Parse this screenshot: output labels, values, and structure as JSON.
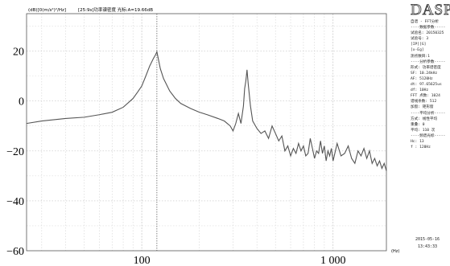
{
  "chart_data": {
    "type": "line",
    "header_unit": "(dB)[0(m/s²)²/Hz]",
    "header_cursor": "[25:9s]功率谱密度 光标:A=19.66dB",
    "x_unit": "(Hz)",
    "x_scale": "log",
    "xlim": [
      25,
      1900
    ],
    "ylim": [
      -60,
      35
    ],
    "y_ticks": [
      20,
      0,
      -20,
      -40,
      -60
    ],
    "y_tick_labels": [
      "20",
      "0",
      "−20",
      "−40",
      "−60"
    ],
    "x_ticks": [
      100,
      1000
    ],
    "x_tick_labels": [
      "100",
      "1 000"
    ],
    "grid": true,
    "cursor_x": 120,
    "series": [
      {
        "color": "#555555",
        "x": [
          25,
          30,
          40,
          50,
          60,
          70,
          80,
          90,
          95,
          100,
          105,
          110,
          115,
          118,
          120,
          122,
          125,
          130,
          140,
          150,
          160,
          180,
          200,
          220,
          250,
          270,
          290,
          300,
          310,
          320,
          330,
          340,
          345,
          350,
          355,
          360,
          370,
          380,
          400,
          420,
          440,
          460,
          480,
          500,
          520,
          540,
          560,
          580,
          600,
          620,
          640,
          660,
          680,
          700,
          720,
          740,
          760,
          780,
          800,
          820,
          840,
          860,
          880,
          900,
          920,
          940,
          960,
          980,
          1000,
          1050,
          1100,
          1150,
          1200,
          1250,
          1300,
          1350,
          1400,
          1450,
          1500,
          1550,
          1600,
          1650,
          1700,
          1750,
          1800,
          1850,
          1900
        ],
        "y": [
          -9,
          -8,
          -7,
          -6.5,
          -5.5,
          -4.5,
          -2.5,
          1,
          3.5,
          6,
          10,
          14,
          17,
          18.5,
          19.7,
          17,
          13,
          9,
          4,
          1,
          -1,
          -3,
          -4.5,
          -5.5,
          -7,
          -8,
          -10,
          -12,
          -9,
          -5,
          -9,
          -2,
          5,
          8,
          12.5,
          7,
          -2,
          -8,
          -11,
          -13,
          -12,
          -15,
          -10,
          -13,
          -16,
          -14,
          -20,
          -18,
          -22,
          -19,
          -21,
          -17,
          -20,
          -18,
          -22,
          -21,
          -15,
          -19,
          -23,
          -20,
          -21,
          -16,
          -21,
          -18,
          -24,
          -20,
          -22,
          -19,
          -24,
          -17,
          -22,
          -21,
          -18,
          -23,
          -25,
          -20,
          -22,
          -19,
          -23,
          -20,
          -25,
          -23,
          -26,
          -24,
          -27,
          -25,
          -28
        ]
      }
    ]
  },
  "logo": "DASP",
  "panel": [
    "自谱 - FFT分析",
    "----数据参数-----",
    "试验名: 20150325",
    "试验号: 3",
    "[IP][G]",
    "[x-Eg]",
    "测点数目:1",
    "----分析参数-----",
    "形式: 功率谱密度",
    "SF: 10.24kHz",
    "AF: 5120Hz",
    "dt: 97.65625us",
    "df: 10Hz",
    "FFT 点数: 1024",
    "谱线条数: 512",
    "加窗: 矩形窗",
    "----平均分析-----",
    "方式: 线性平均",
    "重叠: 0",
    "平均: 110 次",
    "----频谱光标-----",
    "Hc: 13",
    "f : 120Hz"
  ],
  "date": "2015-05-16",
  "time": "13:43:33"
}
